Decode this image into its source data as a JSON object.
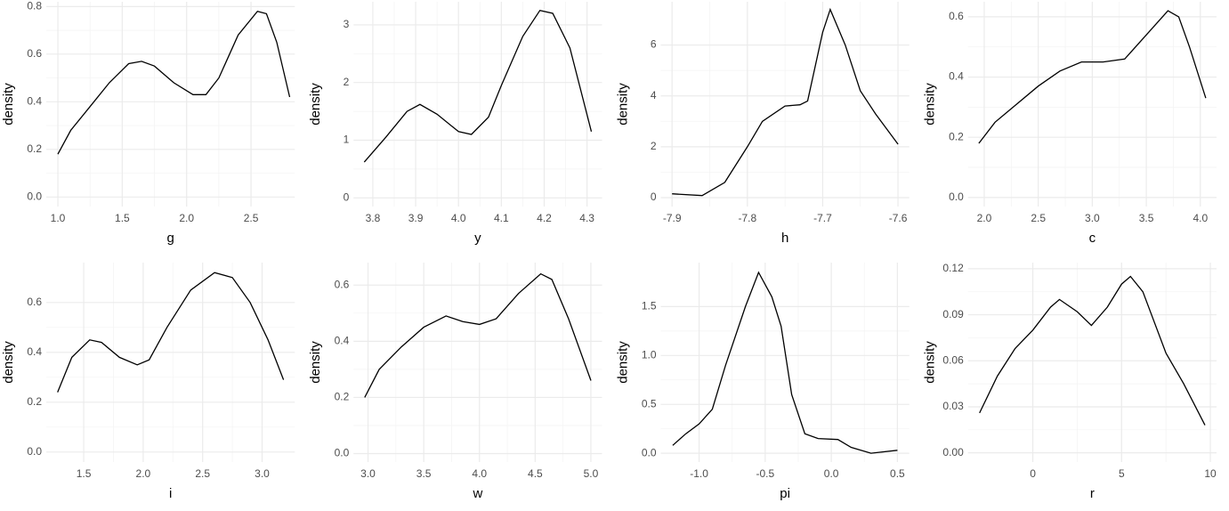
{
  "chart_data": [
    {
      "type": "line",
      "xlabel": "g",
      "ylabel": "density",
      "color": "#000000",
      "grid": true,
      "x": [
        1.0,
        1.1,
        1.25,
        1.4,
        1.55,
        1.65,
        1.75,
        1.9,
        2.05,
        2.15,
        2.25,
        2.4,
        2.55,
        2.62,
        2.7,
        2.8
      ],
      "values": [
        0.18,
        0.28,
        0.38,
        0.48,
        0.56,
        0.57,
        0.55,
        0.48,
        0.43,
        0.43,
        0.5,
        0.68,
        0.78,
        0.77,
        0.65,
        0.42
      ],
      "xlim": [
        0.91,
        2.84
      ],
      "ylim": [
        -0.04,
        0.82
      ],
      "xticks": [
        {
          "value": 1,
          "label": "1.0"
        },
        1.5,
        {
          "value": 2,
          "label": "2.0"
        },
        2.5
      ],
      "yticks": [
        {
          "value": 0,
          "label": "0.0"
        },
        0.2,
        0.4,
        0.6,
        0.8
      ]
    },
    {
      "type": "line",
      "xlabel": "y",
      "ylabel": "density",
      "color": "#000000",
      "grid": true,
      "x": [
        3.78,
        3.83,
        3.88,
        3.91,
        3.95,
        4.0,
        4.03,
        4.07,
        4.1,
        4.15,
        4.19,
        4.22,
        4.26,
        4.31
      ],
      "values": [
        0.62,
        1.05,
        1.5,
        1.62,
        1.45,
        1.15,
        1.1,
        1.4,
        1.95,
        2.8,
        3.25,
        3.2,
        2.6,
        1.15
      ],
      "xlim": [
        3.755,
        4.335
      ],
      "ylim": [
        -0.15,
        3.4
      ],
      "xticks": [
        3.8,
        3.9,
        {
          "value": 4,
          "label": "4.0"
        },
        4.1,
        4.2,
        4.3
      ],
      "yticks": [
        0,
        1,
        2,
        3
      ]
    },
    {
      "type": "line",
      "xlabel": "h",
      "ylabel": "density",
      "color": "#000000",
      "grid": true,
      "x": [
        -7.9,
        -7.86,
        -7.83,
        -7.8,
        -7.78,
        -7.75,
        -7.73,
        -7.72,
        -7.7,
        -7.69,
        -7.67,
        -7.65,
        -7.63,
        -7.6
      ],
      "values": [
        0.15,
        0.08,
        0.6,
        2.0,
        3.0,
        3.6,
        3.65,
        3.8,
        6.5,
        7.4,
        6.0,
        4.2,
        3.3,
        2.1
      ],
      "xlim": [
        -7.915,
        -7.585
      ],
      "ylim": [
        -0.35,
        7.7
      ],
      "xticks": [
        -7.9,
        -7.8,
        -7.7,
        -7.6
      ],
      "yticks": [
        0,
        2,
        4,
        6
      ]
    },
    {
      "type": "line",
      "xlabel": "c",
      "ylabel": "density",
      "color": "#000000",
      "grid": true,
      "x": [
        1.95,
        2.1,
        2.3,
        2.5,
        2.7,
        2.9,
        3.1,
        3.3,
        3.5,
        3.7,
        3.8,
        3.9,
        4.05
      ],
      "values": [
        0.18,
        0.25,
        0.31,
        0.37,
        0.42,
        0.45,
        0.45,
        0.46,
        0.54,
        0.62,
        0.6,
        0.5,
        0.33
      ],
      "xlim": [
        1.85,
        4.15
      ],
      "ylim": [
        -0.03,
        0.65
      ],
      "xticks": [
        {
          "value": 2,
          "label": "2.0"
        },
        2.5,
        {
          "value": 3,
          "label": "3.0"
        },
        3.5,
        {
          "value": 4,
          "label": "4.0"
        }
      ],
      "yticks": [
        {
          "value": 0,
          "label": "0.0"
        },
        0.2,
        0.4,
        0.6
      ]
    },
    {
      "type": "line",
      "xlabel": "i",
      "ylabel": "density",
      "color": "#000000",
      "grid": true,
      "x": [
        1.28,
        1.4,
        1.55,
        1.65,
        1.8,
        1.95,
        2.05,
        2.2,
        2.4,
        2.6,
        2.75,
        2.9,
        3.05,
        3.18
      ],
      "values": [
        0.24,
        0.38,
        0.45,
        0.44,
        0.38,
        0.35,
        0.37,
        0.5,
        0.65,
        0.72,
        0.7,
        0.6,
        0.45,
        0.29
      ],
      "xlim": [
        1.185,
        3.275
      ],
      "ylim": [
        -0.04,
        0.76
      ],
      "xticks": [
        1.5,
        {
          "value": 2,
          "label": "2.0"
        },
        2.5,
        {
          "value": 3,
          "label": "3.0"
        }
      ],
      "yticks": [
        {
          "value": 0,
          "label": "0.0"
        },
        0.2,
        0.4,
        0.6
      ]
    },
    {
      "type": "line",
      "xlabel": "w",
      "ylabel": "density",
      "color": "#000000",
      "grid": true,
      "x": [
        2.97,
        3.1,
        3.3,
        3.5,
        3.7,
        3.85,
        4.0,
        4.15,
        4.35,
        4.55,
        4.65,
        4.8,
        5.0
      ],
      "values": [
        0.2,
        0.3,
        0.38,
        0.45,
        0.49,
        0.47,
        0.46,
        0.48,
        0.57,
        0.64,
        0.62,
        0.48,
        0.26
      ],
      "xlim": [
        2.87,
        5.1
      ],
      "ylim": [
        -0.03,
        0.68
      ],
      "xticks": [
        {
          "value": 3,
          "label": "3.0"
        },
        3.5,
        {
          "value": 4,
          "label": "4.0"
        },
        4.5,
        {
          "value": 5,
          "label": "5.0"
        }
      ],
      "yticks": [
        {
          "value": 0,
          "label": "0.0"
        },
        0.2,
        0.4,
        0.6
      ]
    },
    {
      "type": "line",
      "xlabel": "pi",
      "ylabel": "density",
      "color": "#000000",
      "grid": true,
      "x": [
        -1.2,
        -1.1,
        -1.0,
        -0.9,
        -0.8,
        -0.65,
        -0.55,
        -0.45,
        -0.38,
        -0.3,
        -0.2,
        -0.1,
        0.05,
        0.15,
        0.3,
        0.5
      ],
      "values": [
        0.08,
        0.2,
        0.3,
        0.45,
        0.9,
        1.5,
        1.85,
        1.6,
        1.3,
        0.6,
        0.2,
        0.15,
        0.14,
        0.06,
        0.0,
        0.03
      ],
      "xlim": [
        -1.29,
        0.59
      ],
      "ylim": [
        -0.09,
        1.95
      ],
      "xticks": [
        {
          "value": -1,
          "label": "-1.0"
        },
        -0.5,
        {
          "value": 0,
          "label": "0.0"
        },
        0.5
      ],
      "yticks": [
        {
          "value": 0,
          "label": "0.0"
        },
        0.5,
        {
          "value": 1,
          "label": "1.0"
        },
        1.5
      ]
    },
    {
      "type": "line",
      "xlabel": "r",
      "ylabel": "density",
      "color": "#000000",
      "grid": true,
      "x": [
        -3,
        -2,
        -1,
        0,
        1,
        1.5,
        2.5,
        3.3,
        4.2,
        5,
        5.5,
        6.2,
        7.5,
        8.5,
        9.7
      ],
      "values": [
        0.026,
        0.05,
        0.068,
        0.08,
        0.095,
        0.1,
        0.092,
        0.083,
        0.095,
        0.11,
        0.115,
        0.105,
        0.065,
        0.045,
        0.018
      ],
      "xlim": [
        -3.65,
        10.35
      ],
      "ylim": [
        -0.006,
        0.124
      ],
      "xticks": [
        0,
        5,
        10
      ],
      "yticks": [
        {
          "value": 0,
          "label": "0.00"
        },
        0.03,
        0.06,
        0.09,
        0.12
      ]
    }
  ]
}
